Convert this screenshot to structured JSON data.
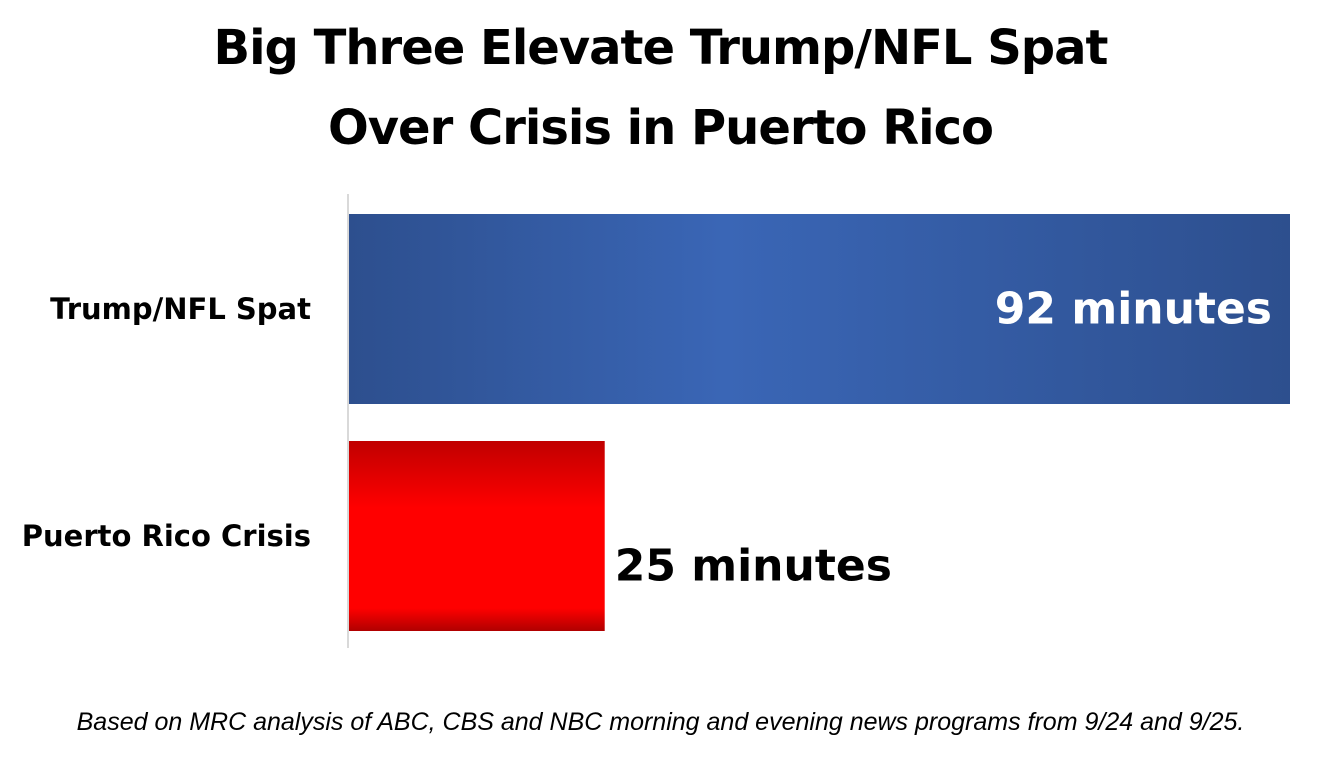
{
  "title": {
    "line1": "Big Three Elevate Trump/NFL Spat",
    "line2": "Over Crisis in Puerto Rico"
  },
  "footnote": "Based on MRC analysis of ABC, CBS and NBC morning and evening news programs from 9/24 and 9/25.",
  "colors": {
    "trump_bar": "#3560AE",
    "puerto_rico_bar": "#FF0000",
    "axis": "#D9D9D9"
  },
  "chart_data": {
    "type": "bar",
    "orientation": "horizontal",
    "title": "Big Three Elevate Trump/NFL Spat Over Crisis in Puerto Rico",
    "categories": [
      "Trump/NFL Spat",
      "Puerto Rico Crisis"
    ],
    "values": [
      92,
      25
    ],
    "data_labels": [
      "92 minutes",
      "25 minutes"
    ],
    "unit": "minutes",
    "xlim": [
      0,
      92
    ],
    "xlabel": "",
    "ylabel": "",
    "grid": false,
    "legend": "none"
  }
}
